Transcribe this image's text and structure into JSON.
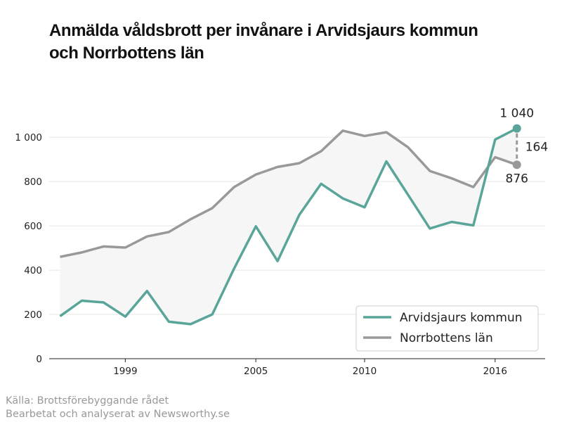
{
  "title": "Anmälda våldsbrott per invånare i Arvidsjaurs kommun och Norrbottens län",
  "source": {
    "line1": "Källa: Brottsförebyggande rådet",
    "line2": "Bearbetat och analyserat av Newsworthy.se"
  },
  "colors": {
    "kommun": "#5aa59a",
    "lan": "#999999",
    "fill": "#f6f6f6",
    "grid": "#e5e5e5",
    "axis": "#222222"
  },
  "chart_data": {
    "type": "line",
    "title": "Anmälda våldsbrott per invånare i Arvidsjaurs kommun och Norrbottens län",
    "xlabel": "",
    "ylabel": "",
    "xlim": [
      1995.5,
      2018.3
    ],
    "ylim": [
      0,
      1150
    ],
    "grid": true,
    "legend_position": "bottom-right",
    "x": [
      1996,
      1997,
      1998,
      1999,
      2000,
      2001,
      2002,
      2003,
      2004,
      2005,
      2006,
      2007,
      2008,
      2009,
      2010,
      2011,
      2012,
      2013,
      2014,
      2015,
      2016,
      2017
    ],
    "x_ticks": [
      1999,
      2005,
      2010,
      2016
    ],
    "x_tick_labels": [
      "1999",
      "2005",
      "2010",
      "2016"
    ],
    "y_ticks": [
      0,
      200,
      400,
      600,
      800,
      1000
    ],
    "y_tick_labels": [
      "0",
      "200",
      "400",
      "600",
      "800",
      "1 000"
    ],
    "series": [
      {
        "name": "Arvidsjaurs kommun",
        "values": [
          192,
          262,
          254,
          190,
          306,
          167,
          156,
          200,
          407,
          598,
          441,
          650,
          790,
          724,
          684,
          891,
          740,
          588,
          618,
          602,
          990,
          1040
        ]
      },
      {
        "name": "Norrbottens län",
        "values": [
          460,
          480,
          507,
          502,
          552,
          572,
          630,
          680,
          775,
          832,
          866,
          883,
          937,
          1030,
          1006,
          1023,
          955,
          848,
          815,
          775,
          910,
          876
        ]
      }
    ],
    "annotations": {
      "kommun_last": "1 040",
      "lan_last": "876",
      "difference": "164"
    }
  },
  "legend": {
    "kommun_label": "Arvidsjaurs kommun",
    "lan_label": "Norrbottens län"
  }
}
